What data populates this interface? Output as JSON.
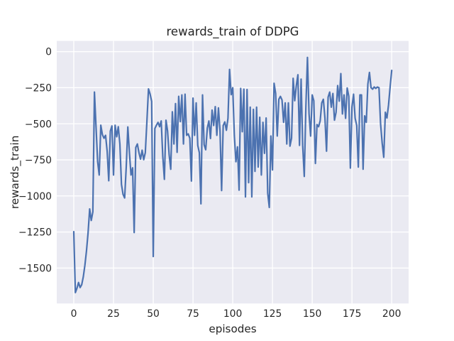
{
  "figure": {
    "background_color": "#ffffff",
    "axes_background_color": "#eaeaf2",
    "grid_color": "#ffffff",
    "text_color": "#262626",
    "line_color": "#4c72b0"
  },
  "chart_data": {
    "type": "line",
    "title": "rewards_train of DDPG",
    "xlabel": "episodes",
    "ylabel": "rewards_train",
    "legend": "none",
    "grid": true,
    "xlim": [
      -10.71,
      210.63
    ],
    "ylim": [
      -1745.6,
      74.4
    ],
    "x_tick_values": [
      0,
      25,
      50,
      75,
      100,
      125,
      150,
      175,
      200
    ],
    "x_tick_labels": [
      "0",
      "25",
      "50",
      "75",
      "100",
      "125",
      "150",
      "175",
      "200"
    ],
    "y_tick_values": [
      0,
      -250,
      -500,
      -750,
      -1000,
      -1250,
      -1500
    ],
    "y_tick_labels": [
      "0",
      "−250",
      "−500",
      "−750",
      "−1000",
      "−1250",
      "−1500"
    ],
    "series": [
      {
        "name": "rewards_train",
        "color": "#4c72b0",
        "x_start": 0,
        "x_step": 1,
        "y": [
          -1248,
          -1670,
          -1640,
          -1600,
          -1635,
          -1615,
          -1560,
          -1480,
          -1380,
          -1255,
          -1090,
          -1170,
          -1110,
          -280,
          -520,
          -760,
          -855,
          -510,
          -575,
          -600,
          -580,
          -690,
          -895,
          -550,
          -515,
          -855,
          -510,
          -590,
          -520,
          -640,
          -920,
          -989,
          -1014,
          -800,
          -522,
          -700,
          -855,
          -805,
          -1254,
          -664,
          -640,
          -700,
          -745,
          -683,
          -749,
          -700,
          -484,
          -258,
          -293,
          -345,
          -1420,
          -533,
          -510,
          -490,
          -520,
          -480,
          -728,
          -885,
          -475,
          -550,
          -715,
          -815,
          -417,
          -640,
          -360,
          -698,
          -310,
          -485,
          -300,
          -640,
          -295,
          -580,
          -570,
          -600,
          -897,
          -322,
          -580,
          -355,
          -650,
          -700,
          -1055,
          -300,
          -645,
          -680,
          -530,
          -480,
          -602,
          -405,
          -512,
          -381,
          -580,
          -390,
          -547,
          -963,
          -512,
          -487,
          -545,
          -462,
          -123,
          -298,
          -250,
          -580,
          -763,
          -660,
          -960,
          -255,
          -555,
          -260,
          -1007,
          -262,
          -908,
          -385,
          -1007,
          -400,
          -830,
          -385,
          -800,
          -455,
          -855,
          -490,
          -705,
          -460,
          -980,
          -1080,
          -585,
          -820,
          -219,
          -290,
          -585,
          -330,
          -310,
          -335,
          -490,
          -355,
          -640,
          -355,
          -655,
          -600,
          -185,
          -340,
          -235,
          -160,
          -650,
          -190,
          -650,
          -865,
          -385,
          -40,
          -430,
          -585,
          -300,
          -340,
          -775,
          -505,
          -520,
          -480,
          -355,
          -330,
          -460,
          -690,
          -315,
          -280,
          -385,
          -290,
          -475,
          -420,
          -235,
          -343,
          -152,
          -432,
          -300,
          -462,
          -252,
          -310,
          -807,
          -384,
          -295,
          -462,
          -512,
          -800,
          -300,
          -300,
          -815,
          -445,
          -490,
          -225,
          -144,
          -250,
          -260,
          -245,
          -255,
          -245,
          -250,
          -500,
          -633,
          -732,
          -420,
          -460,
          -370,
          -245,
          -130
        ]
      }
    ]
  }
}
